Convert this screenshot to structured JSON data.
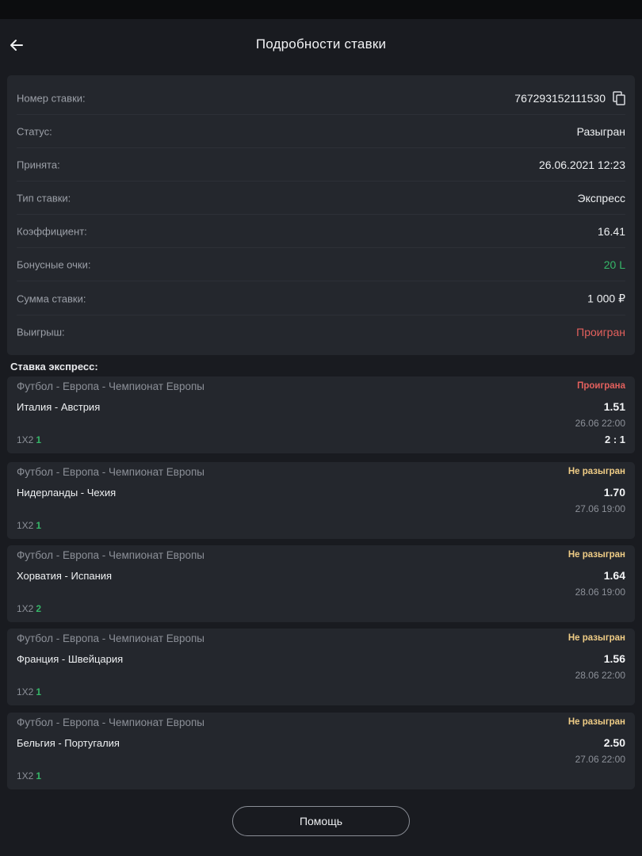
{
  "header": {
    "title": "Подробности ставки"
  },
  "details": [
    {
      "label": "Номер ставки:",
      "value": "767293152111530",
      "copyable": true
    },
    {
      "label": "Статус:",
      "value": "Разыгран"
    },
    {
      "label": "Принята:",
      "value": "26.06.2021 12:23"
    },
    {
      "label": "Тип ставки:",
      "value": "Экспресс"
    },
    {
      "label": "Коэффициент:",
      "value": "16.41"
    },
    {
      "label": "Бонусные очки:",
      "value": "20 L",
      "color": "#35b768"
    },
    {
      "label": "Сумма ставки:",
      "value": "1 000 ₽"
    },
    {
      "label": "Выигрыш:",
      "value": "Проигран",
      "color": "#e3605d"
    }
  ],
  "section_title": "Ставка экспресс:",
  "events": [
    {
      "league": "Футбол - Европа - Чемпионат Европы",
      "status": "Проиграна",
      "status_color": "#e3605d",
      "teams": "Италия - Австрия",
      "odds": "1.51",
      "date": "26.06 22:00",
      "market": "1X2",
      "outcome": "1",
      "score": "2 : 1"
    },
    {
      "league": "Футбол - Европа - Чемпионат Европы",
      "status": "Не разыгран",
      "status_color": "#f0cd86",
      "teams": "Нидерланды - Чехия",
      "odds": "1.70",
      "date": "27.06 19:00",
      "market": "1X2",
      "outcome": "1"
    },
    {
      "league": "Футбол - Европа - Чемпионат Европы",
      "status": "Не разыгран",
      "status_color": "#f0cd86",
      "teams": "Хорватия - Испания",
      "odds": "1.64",
      "date": "28.06 19:00",
      "market": "1X2",
      "outcome": "2"
    },
    {
      "league": "Футбол - Европа - Чемпионат Европы",
      "status": "Не разыгран",
      "status_color": "#f0cd86",
      "teams": "Франция - Швейцария",
      "odds": "1.56",
      "date": "28.06 22:00",
      "market": "1X2",
      "outcome": "1"
    },
    {
      "league": "Футбол - Европа - Чемпионат Европы",
      "status": "Не разыгран",
      "status_color": "#f0cd86",
      "teams": "Бельгия - Португалия",
      "odds": "2.50",
      "date": "27.06 22:00",
      "market": "1X2",
      "outcome": "1"
    }
  ],
  "help_button": "Помощь",
  "icons": {
    "back": "arrow-left-icon",
    "copy": "copy-icon"
  }
}
